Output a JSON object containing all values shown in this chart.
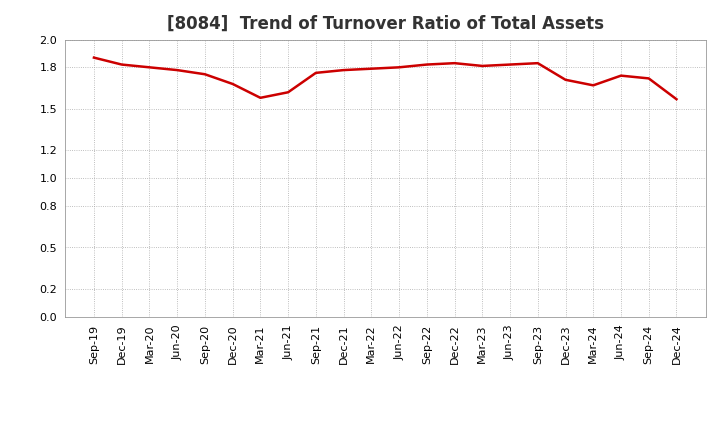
{
  "title": "[8084]  Trend of Turnover Ratio of Total Assets",
  "x_labels": [
    "Sep-19",
    "Dec-19",
    "Mar-20",
    "Jun-20",
    "Sep-20",
    "Dec-20",
    "Mar-21",
    "Jun-21",
    "Sep-21",
    "Dec-21",
    "Mar-22",
    "Jun-22",
    "Sep-22",
    "Dec-22",
    "Mar-23",
    "Jun-23",
    "Sep-23",
    "Dec-23",
    "Mar-24",
    "Jun-24",
    "Sep-24",
    "Dec-24"
  ],
  "y_values": [
    1.87,
    1.82,
    1.8,
    1.78,
    1.75,
    1.68,
    1.58,
    1.62,
    1.76,
    1.78,
    1.79,
    1.8,
    1.82,
    1.83,
    1.81,
    1.82,
    1.83,
    1.71,
    1.67,
    1.74,
    1.72,
    1.57
  ],
  "ylim": [
    0.0,
    2.0
  ],
  "yticks": [
    0.0,
    0.2,
    0.5,
    0.8,
    1.0,
    1.2,
    1.5,
    1.8,
    2.0
  ],
  "line_color": "#cc0000",
  "line_width": 1.8,
  "background_color": "#ffffff",
  "grid_color": "#aaaaaa",
  "title_fontsize": 12,
  "tick_fontsize": 8,
  "title_color": "#333333"
}
